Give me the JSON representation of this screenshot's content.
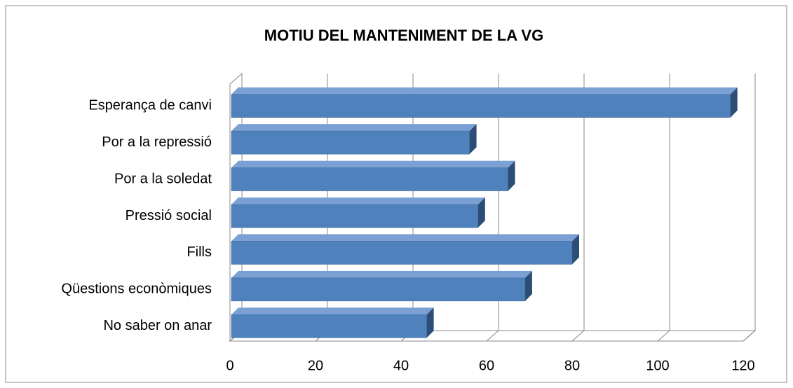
{
  "chart_data": {
    "type": "bar",
    "orientation": "horizontal",
    "three_d": true,
    "title": "MOTIU DEL MANTENIMENT DE LA VG",
    "categories": [
      "Esperança de canvi",
      "Por a la repressió",
      "Por a la soledat",
      "Pressió social",
      "Fills",
      "Qüestions econòmiques",
      "No saber on anar"
    ],
    "values": [
      117,
      56,
      65,
      58,
      80,
      69,
      46
    ],
    "color": "#4f81bd",
    "xlim": [
      0,
      120
    ],
    "xticks": [
      0,
      20,
      40,
      60,
      80,
      100,
      120
    ],
    "grid": true
  }
}
